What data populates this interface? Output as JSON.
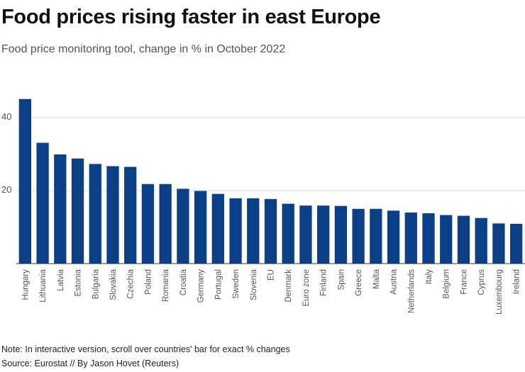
{
  "header": {
    "title": "Food prices rising faster in east Europe",
    "subtitle": "Food price monitoring tool, change in % in October 2022"
  },
  "footer": {
    "note": "Note: In interactive version, scroll over countries' bar for exact % changes",
    "source": "Source: Eurostat // By Jason Hovet (Reuters)"
  },
  "colors": {
    "bar": "#0b3f86",
    "grid": "#dddddd",
    "axis": "#333333",
    "tick_text": "#555555"
  },
  "chart_data": {
    "type": "bar",
    "title": "Food prices rising faster in east Europe",
    "subtitle": "Food price monitoring tool, change in % in October 2022",
    "xlabel": "",
    "ylabel": "",
    "ylim": [
      0,
      50
    ],
    "yticks": [
      20,
      40
    ],
    "grid": true,
    "categories": [
      "Hungary",
      "Lithuania",
      "Latvia",
      "Estonia",
      "Bulgaria",
      "Slovakia",
      "Czechia",
      "Poland",
      "Romania",
      "Croatia",
      "Germany",
      "Portugal",
      "Sweden",
      "Slovenia",
      "EU",
      "Denmark",
      "Euro zone",
      "Finland",
      "Spain",
      "Greece",
      "Malta",
      "Austria",
      "Netherlands",
      "Italy",
      "Belgium",
      "France",
      "Cyprus",
      "Luxembourg",
      "Ireland"
    ],
    "values": [
      45.1,
      33.1,
      29.9,
      28.8,
      27.3,
      26.7,
      26.5,
      21.8,
      21.8,
      20.5,
      19.9,
      19.1,
      17.9,
      17.9,
      17.7,
      16.4,
      15.9,
      15.9,
      15.8,
      15.0,
      15.0,
      14.5,
      14.0,
      13.8,
      13.3,
      13.1,
      12.5,
      11.0,
      10.9
    ]
  }
}
